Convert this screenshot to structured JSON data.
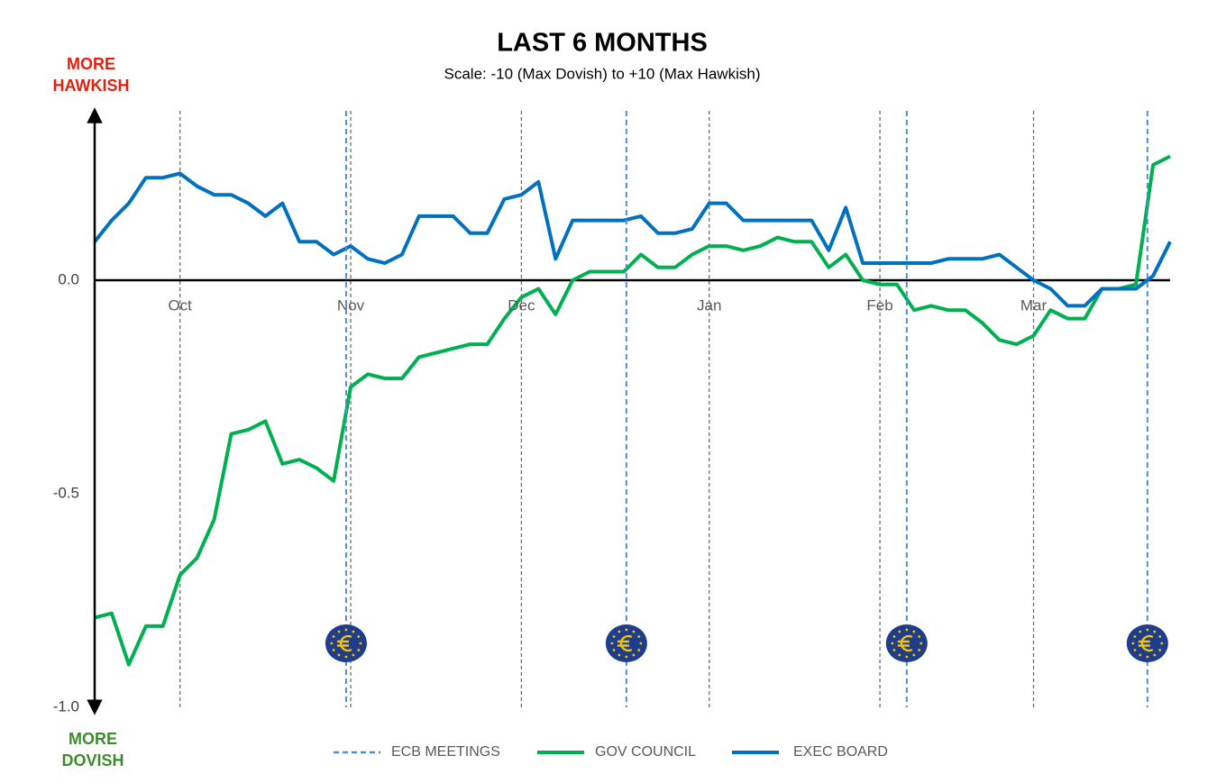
{
  "chart_data": {
    "type": "line",
    "title": "LAST 6 MONTHS",
    "subtitle": "Scale: -10 (Max Dovish)  to +10 (Max Hawkish)",
    "top_label": "MORE HAWKISH",
    "bottom_label": "MORE DOVISH",
    "categories": [
      null,
      null,
      null,
      null,
      null,
      "Oct",
      null,
      null,
      null,
      null,
      null,
      null,
      null,
      null,
      null,
      "Nov",
      null,
      null,
      null,
      null,
      null,
      null,
      null,
      null,
      null,
      "Dec",
      null,
      null,
      null,
      null,
      null,
      null,
      null,
      null,
      null,
      null,
      "Jan",
      null,
      null,
      null,
      null,
      null,
      null,
      null,
      null,
      null,
      "Feb",
      null,
      null,
      null,
      null,
      null,
      null,
      null,
      null,
      "Mar",
      null,
      null,
      null,
      null,
      null,
      null,
      null,
      null
    ],
    "series": [
      {
        "name": "GOV COUNCIL",
        "color": "#00b050",
        "values": [
          -0.79,
          -0.78,
          -0.9,
          -0.81,
          -0.81,
          -0.69,
          -0.65,
          -0.56,
          -0.36,
          -0.35,
          -0.33,
          -0.43,
          -0.42,
          -0.44,
          -0.47,
          -0.25,
          -0.22,
          -0.23,
          -0.23,
          -0.18,
          -0.17,
          -0.16,
          -0.15,
          -0.15,
          -0.09,
          -0.04,
          -0.02,
          -0.08,
          0.0,
          0.02,
          0.02,
          0.02,
          0.06,
          0.03,
          0.03,
          0.06,
          0.08,
          0.08,
          0.07,
          0.08,
          0.1,
          0.09,
          0.09,
          0.03,
          0.06,
          0.0,
          -0.01,
          -0.01,
          -0.07,
          -0.06,
          -0.07,
          -0.07,
          -0.1,
          -0.14,
          -0.15,
          -0.13,
          -0.07,
          -0.09,
          -0.09,
          -0.02,
          -0.02,
          -0.01,
          0.27,
          0.29
        ]
      },
      {
        "name": "EXEC BOARD",
        "color": "#0070c0",
        "values": [
          0.09,
          0.14,
          0.18,
          0.24,
          0.24,
          0.25,
          0.22,
          0.2,
          0.2,
          0.18,
          0.15,
          0.18,
          0.09,
          0.09,
          0.06,
          0.08,
          0.05,
          0.04,
          0.06,
          0.15,
          0.15,
          0.15,
          0.11,
          0.11,
          0.19,
          0.2,
          0.23,
          0.05,
          0.14,
          0.14,
          0.14,
          0.14,
          0.15,
          0.11,
          0.11,
          0.12,
          0.18,
          0.18,
          0.14,
          0.14,
          0.14,
          0.14,
          0.14,
          0.07,
          0.17,
          0.04,
          0.04,
          0.04,
          0.04,
          0.04,
          0.05,
          0.05,
          0.05,
          0.06,
          0.03,
          0.0,
          -0.02,
          -0.06,
          -0.06,
          -0.02,
          -0.02,
          -0.02,
          0.01,
          0.09
        ]
      }
    ],
    "ecb_meetings": {
      "name": "ECB MEETINGS",
      "color": "#4a8fd8",
      "at": [
        14.73,
        31.15,
        47.57,
        61.67
      ]
    },
    "ylim": [
      -1.0,
      0.386
    ],
    "yticks": [
      {
        "value": -1,
        "label": "-1.0"
      },
      {
        "value": -0.5,
        "label": "-0.5"
      },
      {
        "value": 0,
        "label": "0.0"
      }
    ],
    "grid": true
  }
}
